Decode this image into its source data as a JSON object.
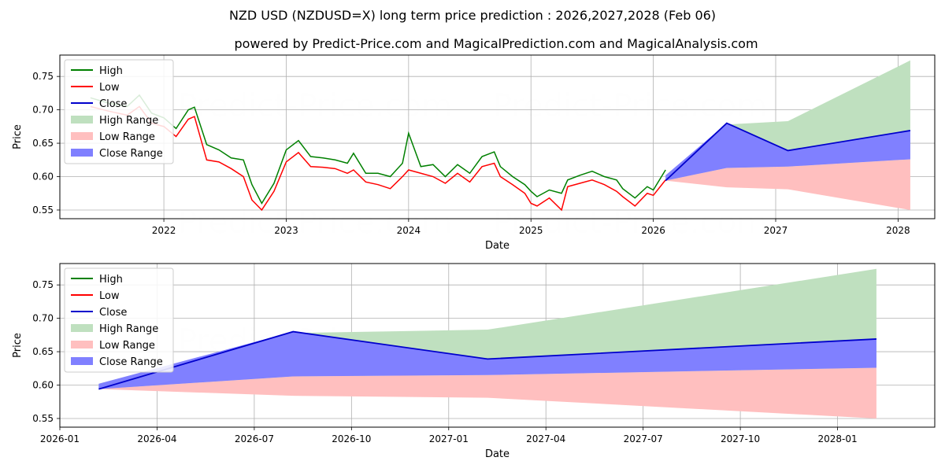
{
  "title": "NZD USD (NZDUSD=X) long term price prediction : 2026,2027,2028 (Feb 06)",
  "subtitle": "powered by Predict-Price.com and MagicalPrediction.com and MagicalAnalysis.com",
  "watermark": "Predict-Price.com",
  "colors": {
    "high": "#008000",
    "low": "#ff0000",
    "close": "#0000cc",
    "high_range": "#bfe0bf",
    "low_range": "#ffbfbf",
    "close_range": "#8080ff"
  },
  "chart_data": [
    {
      "type": "line",
      "name": "long-term",
      "xlabel": "Date",
      "ylabel": "Price",
      "xlim": [
        2021.15,
        2028.3
      ],
      "ylim": [
        0.537,
        0.782
      ],
      "xticks": [
        2022,
        2023,
        2024,
        2025,
        2026,
        2027,
        2028
      ],
      "xtick_labels": [
        "2022",
        "2023",
        "2024",
        "2025",
        "2026",
        "2027",
        "2028"
      ],
      "yticks": [
        0.55,
        0.6,
        0.65,
        0.7,
        0.75
      ],
      "ytick_labels": [
        "0.55",
        "0.60",
        "0.65",
        "0.70",
        "0.75"
      ],
      "grid": true,
      "legend": {
        "position": "top-left",
        "entries": [
          "High",
          "Low",
          "Close",
          "High Range",
          "Low Range",
          "Close Range"
        ]
      },
      "history": {
        "x": [
          2021.4,
          2021.55,
          2021.7,
          2021.8,
          2021.9,
          2022.0,
          2022.1,
          2022.2,
          2022.25,
          2022.35,
          2022.45,
          2022.55,
          2022.65,
          2022.72,
          2022.8,
          2022.9,
          2023.0,
          2023.1,
          2023.2,
          2023.3,
          2023.4,
          2023.5,
          2023.55,
          2023.65,
          2023.75,
          2023.85,
          2023.95,
          2024.0,
          2024.1,
          2024.2,
          2024.3,
          2024.4,
          2024.5,
          2024.6,
          2024.7,
          2024.75,
          2024.85,
          2024.95,
          2025.0,
          2025.05,
          2025.15,
          2025.25,
          2025.3,
          2025.4,
          2025.5,
          2025.6,
          2025.7,
          2025.75,
          2025.85,
          2025.95,
          2026.0,
          2026.1
        ],
        "high": [
          0.718,
          0.71,
          0.705,
          0.722,
          0.695,
          0.688,
          0.672,
          0.7,
          0.704,
          0.648,
          0.64,
          0.628,
          0.625,
          0.588,
          0.56,
          0.59,
          0.64,
          0.654,
          0.63,
          0.628,
          0.625,
          0.62,
          0.635,
          0.605,
          0.605,
          0.6,
          0.62,
          0.665,
          0.615,
          0.618,
          0.6,
          0.618,
          0.605,
          0.63,
          0.637,
          0.615,
          0.6,
          0.588,
          0.578,
          0.57,
          0.58,
          0.575,
          0.595,
          0.602,
          0.608,
          0.6,
          0.595,
          0.582,
          0.568,
          0.585,
          0.58,
          0.61
        ],
        "low": [
          0.705,
          0.698,
          0.692,
          0.705,
          0.68,
          0.675,
          0.66,
          0.686,
          0.69,
          0.625,
          0.622,
          0.612,
          0.6,
          0.565,
          0.55,
          0.578,
          0.622,
          0.636,
          0.615,
          0.614,
          0.612,
          0.605,
          0.61,
          0.592,
          0.588,
          0.582,
          0.6,
          0.61,
          0.605,
          0.6,
          0.59,
          0.605,
          0.592,
          0.615,
          0.62,
          0.6,
          0.588,
          0.575,
          0.56,
          0.556,
          0.568,
          0.55,
          0.585,
          0.59,
          0.595,
          0.588,
          0.578,
          0.57,
          0.556,
          0.575,
          0.572,
          0.595
        ]
      },
      "forecast": {
        "x": [
          2026.1,
          2026.6,
          2027.1,
          2028.1
        ],
        "close": [
          0.594,
          0.68,
          0.639,
          0.669
        ],
        "high_range_top": [
          0.602,
          0.678,
          0.683,
          0.774
        ],
        "low_range_bottom": [
          0.594,
          0.584,
          0.581,
          0.55
        ],
        "close_range_top": [
          0.602,
          0.68,
          0.639,
          0.669
        ],
        "close_range_bottom": [
          0.594,
          0.613,
          0.615,
          0.626
        ]
      }
    },
    {
      "type": "line",
      "name": "forecast-detail",
      "xlabel": "Date",
      "ylabel": "Price",
      "xlim": [
        2026.0,
        2028.25
      ],
      "ylim": [
        0.537,
        0.782
      ],
      "xticks": [
        2026.0,
        2026.25,
        2026.5,
        2026.75,
        2027.0,
        2027.25,
        2027.5,
        2027.75,
        2028.0
      ],
      "xtick_labels": [
        "2026-01",
        "2026-04",
        "2026-07",
        "2026-10",
        "2027-01",
        "2027-04",
        "2027-07",
        "2027-10",
        "2028-01"
      ],
      "yticks": [
        0.55,
        0.6,
        0.65,
        0.7,
        0.75
      ],
      "ytick_labels": [
        "0.55",
        "0.60",
        "0.65",
        "0.70",
        "0.75"
      ],
      "grid": true,
      "legend": {
        "position": "top-left",
        "entries": [
          "High",
          "Low",
          "Close",
          "High Range",
          "Low Range",
          "Close Range"
        ]
      },
      "forecast": {
        "x": [
          2026.1,
          2026.6,
          2027.1,
          2028.1
        ],
        "close": [
          0.594,
          0.68,
          0.639,
          0.669
        ],
        "high_range_top": [
          0.602,
          0.678,
          0.683,
          0.774
        ],
        "low_range_bottom": [
          0.594,
          0.584,
          0.581,
          0.55
        ],
        "close_range_top": [
          0.602,
          0.68,
          0.639,
          0.669
        ],
        "close_range_bottom": [
          0.594,
          0.613,
          0.615,
          0.626
        ]
      }
    }
  ]
}
